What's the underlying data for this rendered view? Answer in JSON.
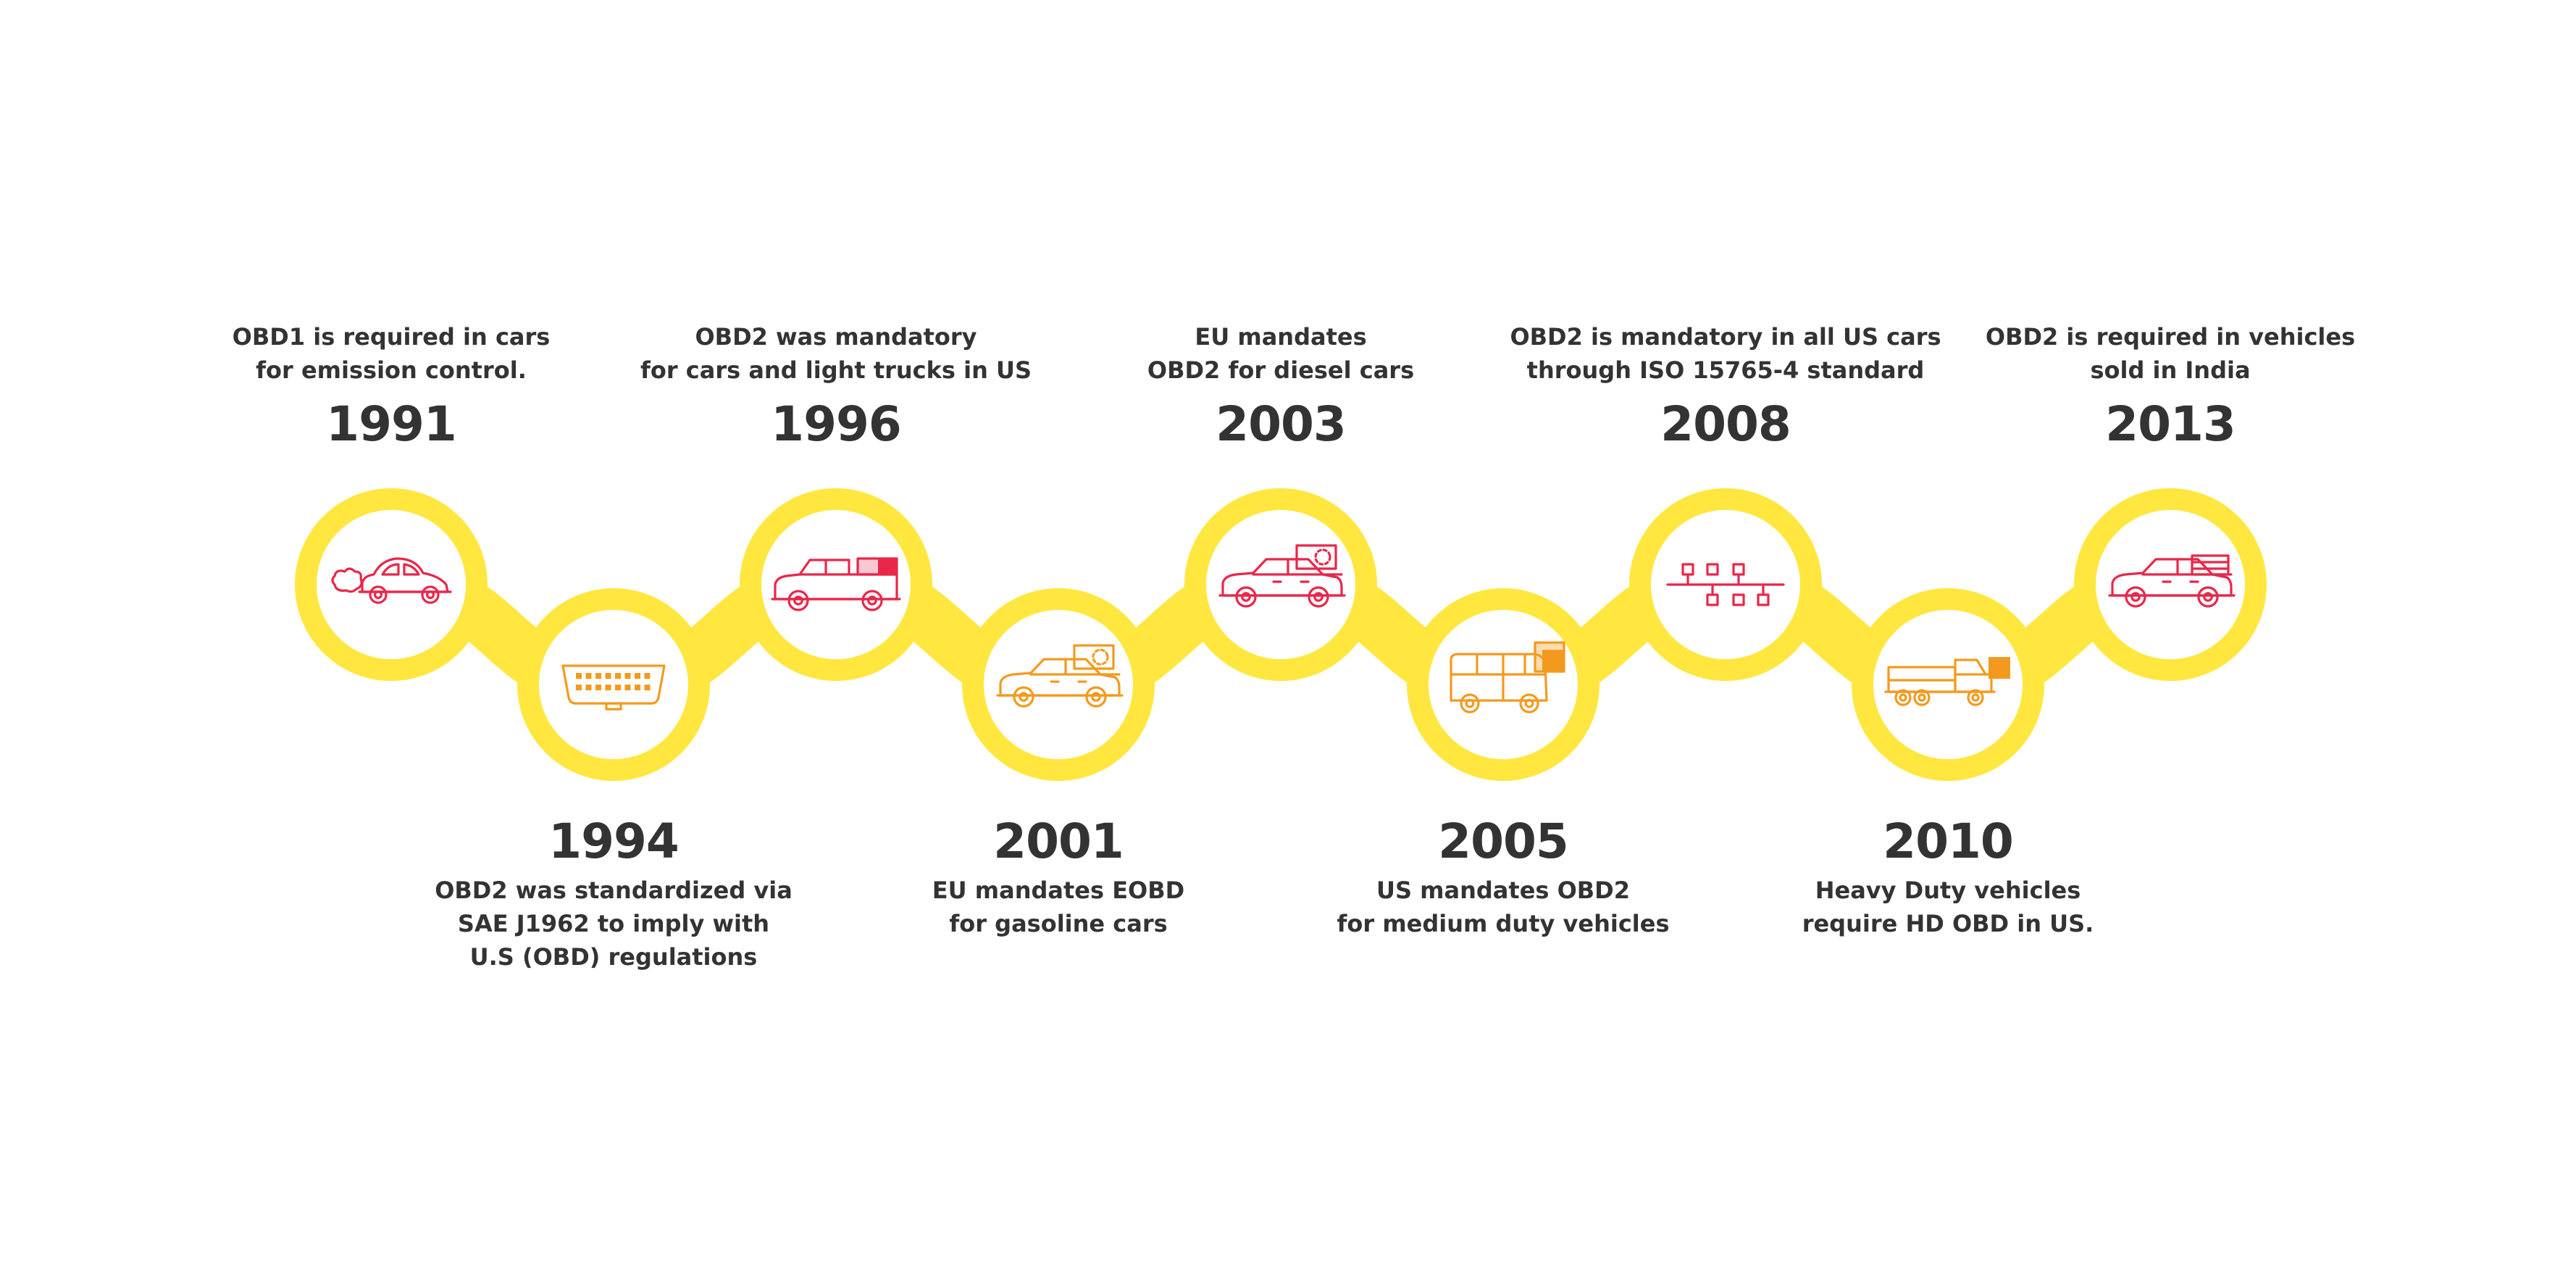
{
  "colors": {
    "ring": "#FFE740",
    "text": "#333333",
    "icon_red": "#E8274A",
    "icon_orange": "#F39A1E",
    "background": "#FFFFFF"
  },
  "milestones": [
    {
      "year": "1991",
      "desc": [
        "OBD1 is required in cars",
        "for emission control."
      ],
      "icon": "car-exhaust-icon",
      "icon_color": "red",
      "row": "top"
    },
    {
      "year": "1994",
      "desc": [
        "OBD2 was standardized via",
        "SAE J1962 to imply with",
        "U.S (OBD) regulations"
      ],
      "icon": "obd-connector-icon",
      "icon_color": "orange",
      "row": "bottom"
    },
    {
      "year": "1996",
      "desc": [
        "OBD2 was mandatory",
        "for cars and light trucks in US"
      ],
      "icon": "light-truck-icon",
      "icon_color": "red",
      "row": "top"
    },
    {
      "year": "2001",
      "desc": [
        "EU mandates EOBD",
        "for gasoline cars"
      ],
      "icon": "gasoline-car-icon",
      "icon_color": "orange",
      "row": "bottom"
    },
    {
      "year": "2003",
      "desc": [
        "EU mandates",
        "OBD2 for diesel cars"
      ],
      "icon": "diesel-car-icon",
      "icon_color": "red",
      "row": "top"
    },
    {
      "year": "2005",
      "desc": [
        "US mandates OBD2",
        "for medium duty vehicles"
      ],
      "icon": "medium-duty-van-icon",
      "icon_color": "orange",
      "row": "bottom"
    },
    {
      "year": "2008",
      "desc": [
        "OBD2 is mandatory in all US cars",
        "through ISO 15765-4 standard"
      ],
      "icon": "can-network-icon",
      "icon_color": "red",
      "row": "top"
    },
    {
      "year": "2010",
      "desc": [
        "Heavy Duty vehicles",
        "require HD OBD in US."
      ],
      "icon": "heavy-truck-icon",
      "icon_color": "orange",
      "row": "bottom"
    },
    {
      "year": "2013",
      "desc": [
        "OBD2 is required in vehicles",
        "sold in India"
      ],
      "icon": "india-car-icon",
      "icon_color": "red",
      "row": "top"
    }
  ]
}
